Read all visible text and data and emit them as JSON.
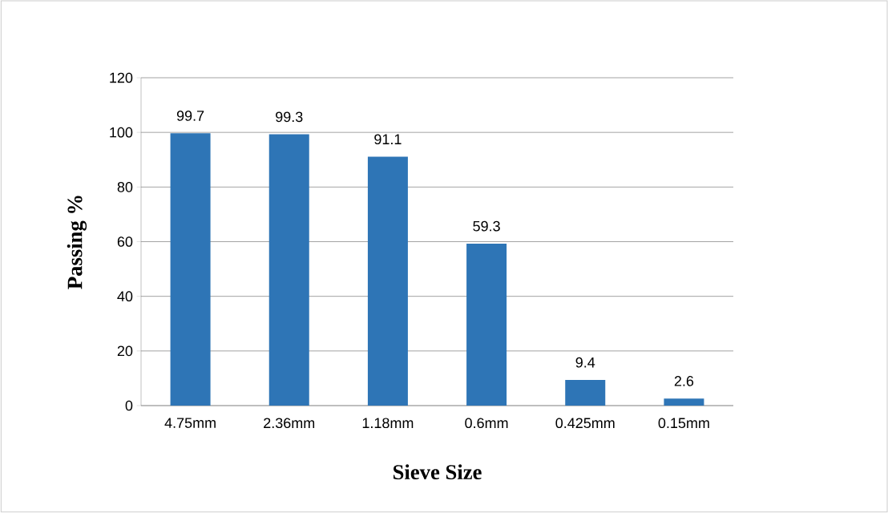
{
  "chart_data": {
    "type": "bar",
    "xlabel": "Sieve Size",
    "ylabel": "Passing %",
    "categories": [
      "4.75mm",
      "2.36mm",
      "1.18mm",
      "0.6mm",
      "0.425mm",
      "0.15mm"
    ],
    "values": [
      99.7,
      99.3,
      91.1,
      59.3,
      9.4,
      2.6
    ],
    "color": "#2e75b6",
    "ylim": [
      0,
      120
    ],
    "yticks": [
      0,
      20,
      40,
      60,
      80,
      100,
      120
    ],
    "grid": "y",
    "data_labels": true
  }
}
